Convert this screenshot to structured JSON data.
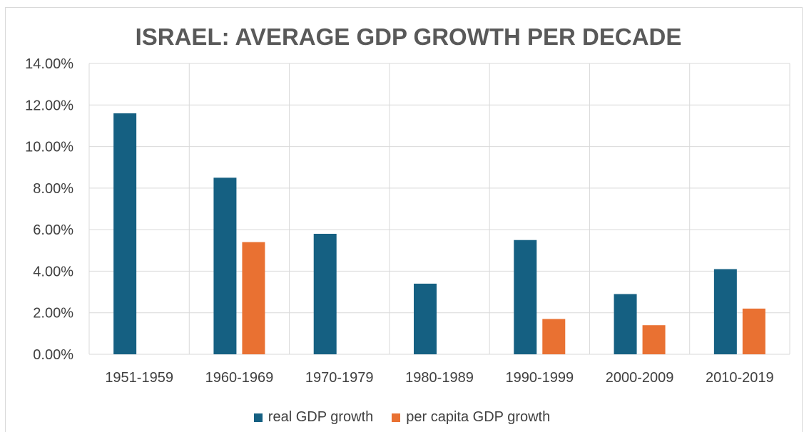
{
  "chart_data": {
    "type": "bar",
    "title": "ISRAEL: AVERAGE GDP GROWTH PER DECADE",
    "categories": [
      "1951-1959",
      "1960-1969",
      "1970-1979",
      "1980-1989",
      "1990-1999",
      "2000-2009",
      "2010-2019"
    ],
    "series": [
      {
        "name": "real GDP growth",
        "color": "#156082",
        "values": [
          11.6,
          8.5,
          5.8,
          3.4,
          5.5,
          2.9,
          4.1
        ]
      },
      {
        "name": "per capita GDP growth",
        "color": "#E97132",
        "values": [
          null,
          5.4,
          null,
          null,
          1.7,
          1.4,
          2.2
        ]
      }
    ],
    "ylim": [
      0,
      14
    ],
    "yticks": [
      "0.00%",
      "2.00%",
      "4.00%",
      "6.00%",
      "8.00%",
      "10.00%",
      "12.00%",
      "14.00%"
    ],
    "grid": true,
    "legend": "bottom"
  }
}
